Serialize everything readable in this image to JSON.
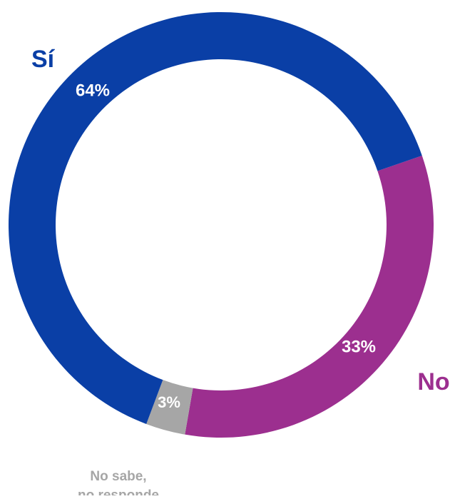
{
  "chart_data": {
    "type": "donut",
    "categories": [
      "Sí",
      "No",
      "No sabe, no responde"
    ],
    "values": [
      64,
      33,
      3
    ],
    "value_labels": [
      "64%",
      "33%",
      "3%"
    ],
    "colors": [
      "#0a3fa6",
      "#9c2f8f",
      "#a6a6a6"
    ]
  }
}
